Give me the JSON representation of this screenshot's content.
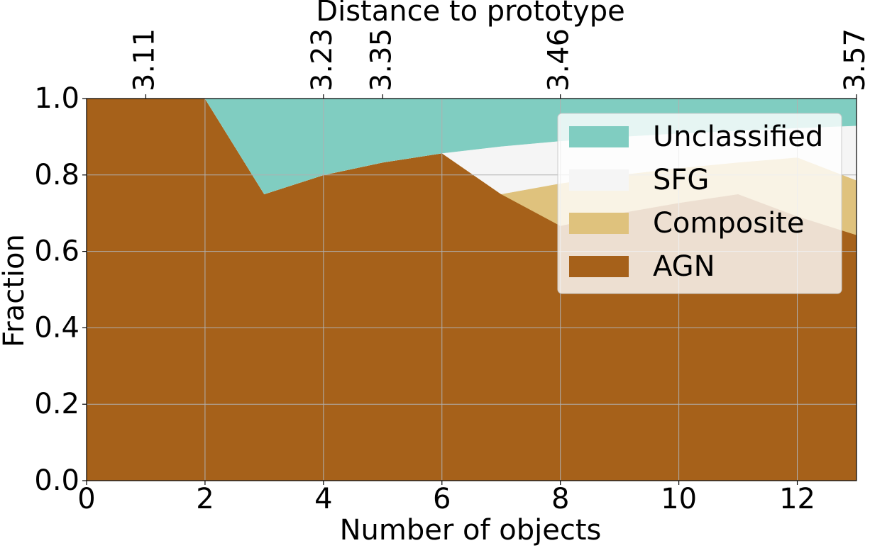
{
  "chart_data": {
    "type": "stacked_area",
    "xlabel": "Number of objects",
    "ylabel": "Fraction",
    "x2label": "Distance to prototype",
    "x": [
      0,
      1,
      2,
      3,
      4,
      5,
      6,
      7,
      8,
      9,
      10,
      11,
      12,
      13
    ],
    "series": [
      {
        "name": "AGN",
        "color": "#a6611a",
        "values": [
          1,
          1,
          1,
          0.75,
          0.8,
          0.833,
          0.857,
          0.75,
          0.667,
          0.7,
          0.727,
          0.75,
          0.692,
          0.643
        ]
      },
      {
        "name": "Composite",
        "color": "#dfc27d",
        "values": [
          0,
          0,
          0,
          0,
          0,
          0,
          0,
          0,
          0.111,
          0.1,
          0.091,
          0.083,
          0.154,
          0.143
        ]
      },
      {
        "name": "SFG",
        "color": "#f5f5f5",
        "values": [
          0,
          0,
          0,
          0,
          0,
          0,
          0,
          0.125,
          0.111,
          0.1,
          0.091,
          0.083,
          0.077,
          0.143
        ]
      },
      {
        "name": "Unclassified",
        "color": "#80cdc1",
        "values": [
          0,
          0,
          0,
          0.25,
          0.2,
          0.167,
          0.143,
          0.125,
          0.111,
          0.1,
          0.091,
          0.083,
          0.077,
          0.071
        ]
      }
    ],
    "xlim": [
      0,
      13
    ],
    "ylim": [
      0,
      1
    ],
    "xticks": [
      0,
      2,
      4,
      6,
      8,
      10,
      12
    ],
    "yticks": [
      {
        "value": 0,
        "label": "0.0"
      },
      0.2,
      0.4,
      0.6,
      0.8,
      {
        "value": 1,
        "label": "1.0"
      }
    ],
    "x2ticks": [
      {
        "value": 1,
        "label": "3.11"
      },
      {
        "value": 4,
        "label": "3.23"
      },
      {
        "value": 5,
        "label": "3.35"
      },
      {
        "value": 8,
        "label": "3.46"
      },
      {
        "value": 13,
        "label": "3.57"
      }
    ],
    "grid": true,
    "legend": "upper right"
  }
}
